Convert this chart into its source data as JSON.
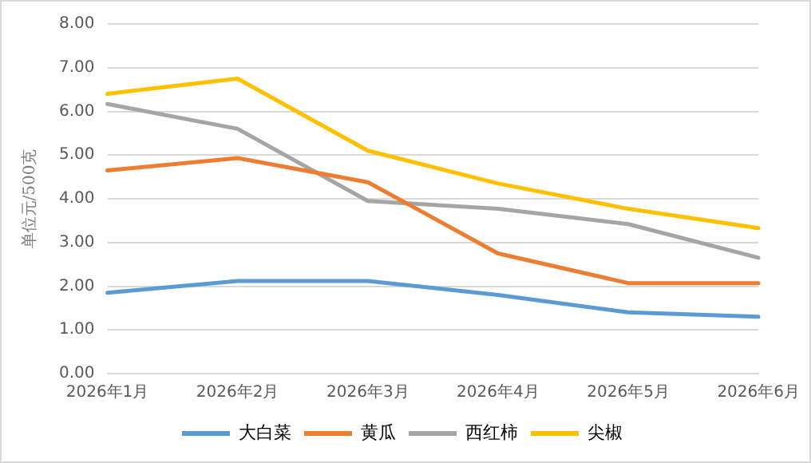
{
  "chart_data": {
    "type": "line",
    "ylabel": "单位元/500克",
    "categories": [
      "2026年1月",
      "2026年2月",
      "2026年3月",
      "2026年4月",
      "2026年5月",
      "2026年6月"
    ],
    "series": [
      {
        "name": "大白菜",
        "color": "#5b9bd5",
        "values": [
          1.85,
          2.12,
          2.12,
          1.8,
          1.4,
          1.3
        ]
      },
      {
        "name": "黄瓜",
        "color": "#ed7d31",
        "values": [
          4.65,
          4.93,
          4.38,
          2.75,
          2.07,
          2.07
        ]
      },
      {
        "name": "西红柿",
        "color": "#a5a5a5",
        "values": [
          6.17,
          5.6,
          3.95,
          3.77,
          3.42,
          2.65
        ]
      },
      {
        "name": "尖椒",
        "color": "#ffc000",
        "values": [
          6.4,
          6.75,
          5.1,
          4.35,
          3.77,
          3.33
        ]
      }
    ],
    "ylim": [
      0,
      8
    ],
    "yticks": [
      {
        "value": 0,
        "label": "0.00"
      },
      {
        "value": 1,
        "label": "1.00"
      },
      {
        "value": 2,
        "label": "2.00"
      },
      {
        "value": 3,
        "label": "3.00"
      },
      {
        "value": 4,
        "label": "4.00"
      },
      {
        "value": 5,
        "label": "5.00"
      },
      {
        "value": 6,
        "label": "6.00"
      },
      {
        "value": 7,
        "label": "7.00"
      },
      {
        "value": 8,
        "label": "8.00"
      }
    ],
    "grid": "y",
    "legend": "bottom",
    "marker": "none",
    "line_style": "solid"
  }
}
